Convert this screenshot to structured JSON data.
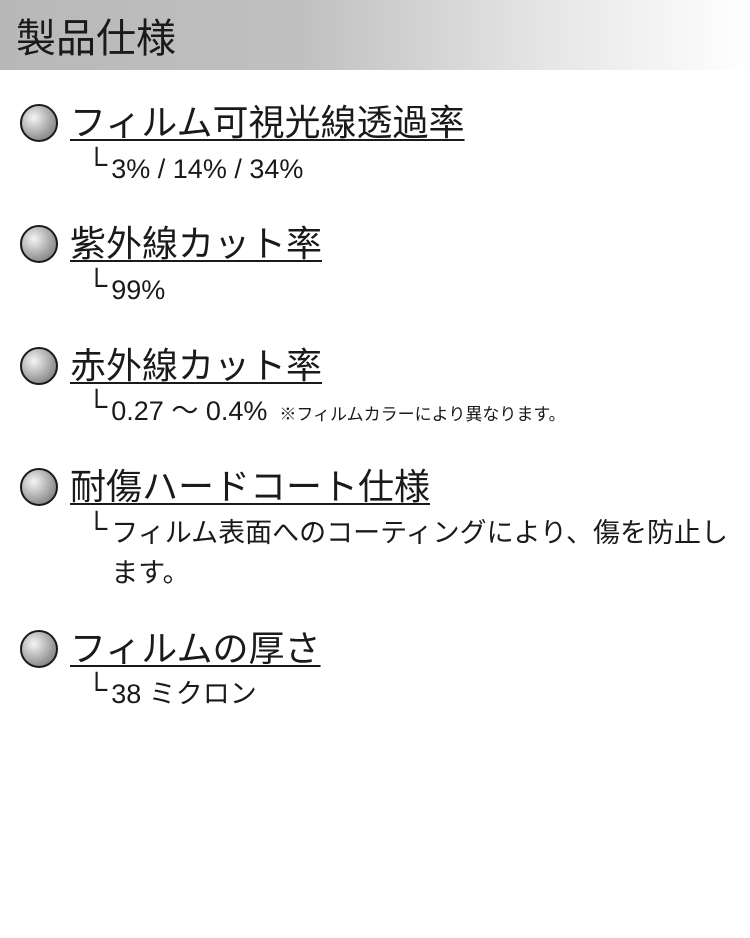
{
  "header": {
    "title": "製品仕様"
  },
  "specs": [
    {
      "title": "フィルム可視光線透過率",
      "value": "3% / 14% / 34%",
      "note": ""
    },
    {
      "title": "紫外線カット率",
      "value": "99%",
      "note": ""
    },
    {
      "title": "赤外線カット率",
      "value": "0.27 〜 0.4%",
      "note": "※フィルムカラーにより異なります。"
    },
    {
      "title": "耐傷ハードコート仕様",
      "value": "フィルム表面へのコーティングにより、傷を防止します。",
      "note": ""
    },
    {
      "title": "フィルムの厚さ",
      "value": "38 ミクロン",
      "note": ""
    }
  ],
  "branch_glyph": "└",
  "colors": {
    "text": "#1a1a1a",
    "background": "#ffffff",
    "header_gradient_start": "#b8b8b8",
    "header_gradient_end": "#ffffff",
    "bullet_border": "#1a1a1a",
    "bullet_light": "#f5f5f5",
    "bullet_dark": "#707070"
  }
}
